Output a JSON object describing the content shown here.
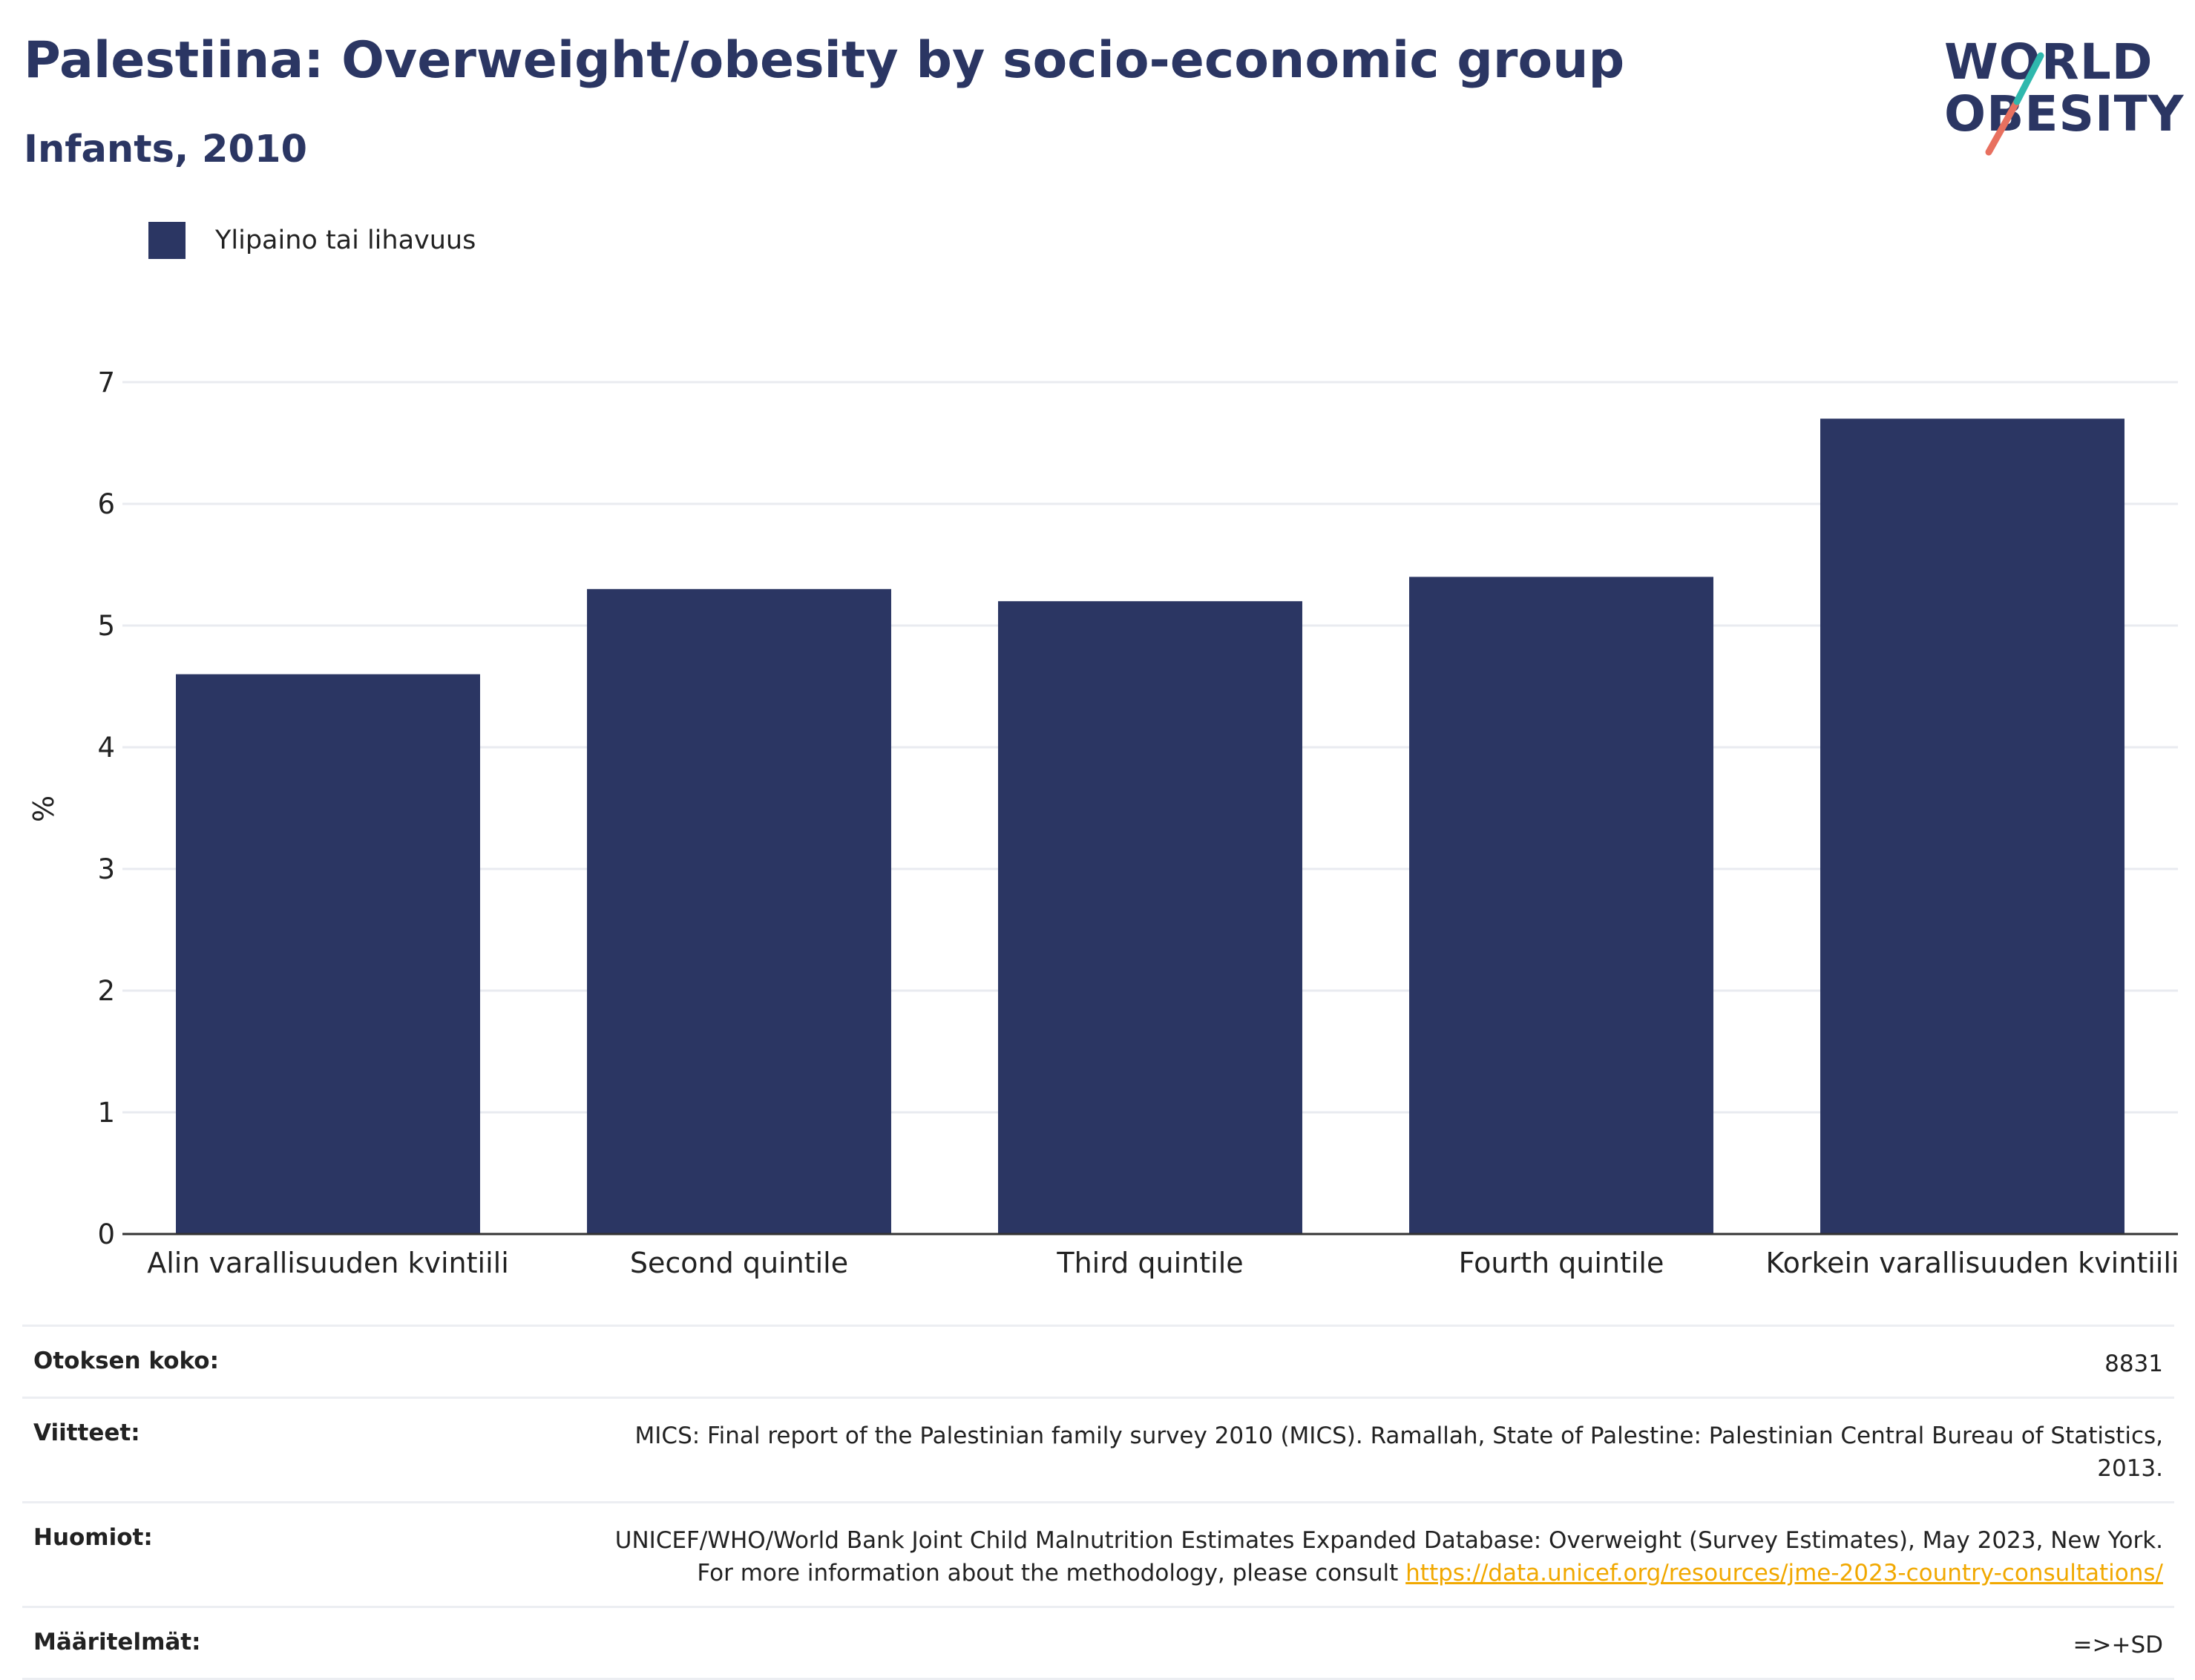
{
  "title": "Palestiina: Overweight/obesity by socio-economic group",
  "subtitle": "Infants, 2010",
  "logo": {
    "line1": "WORLD",
    "line2": "OBESITY"
  },
  "legend": {
    "label": "Ylipaino tai lihavuus",
    "color": "#2b3663"
  },
  "chart_data": {
    "type": "bar",
    "categories": [
      "Alin varallisuuden kvintiili",
      "Second quintile",
      "Third quintile",
      "Fourth quintile",
      "Korkein varallisuuden kvintiili"
    ],
    "series": [
      {
        "name": "Ylipaino tai lihavuus",
        "values": [
          4.6,
          5.3,
          5.2,
          5.4,
          6.7
        ],
        "color": "#2b3663"
      }
    ],
    "ylabel": "%",
    "xlabel": "",
    "ylim": [
      0,
      7
    ],
    "yticks": [
      0,
      1,
      2,
      3,
      4,
      5,
      6,
      7
    ],
    "grid": true,
    "legend_position": "top-left"
  },
  "footer": {
    "sample_key": "Otoksen koko:",
    "sample_value": "8831",
    "refs_key": "Viitteet:",
    "refs_value": "MICS: Final report of the Palestinian family survey 2010 (MICS). Ramallah, State of Palestine: Palestinian Central Bureau of Statistics, 2013.",
    "notes_key": "Huomiot:",
    "notes_value": "UNICEF/WHO/World Bank Joint Child Malnutrition Estimates Expanded Database: Overweight (Survey Estimates), May 2023, New York. For more information about the methodology, please consult ",
    "notes_link": "https://data.unicef.org/resources/jme-2023-country-consultations/",
    "defs_key": "Määritelmät:",
    "defs_value": "=>+SD"
  }
}
